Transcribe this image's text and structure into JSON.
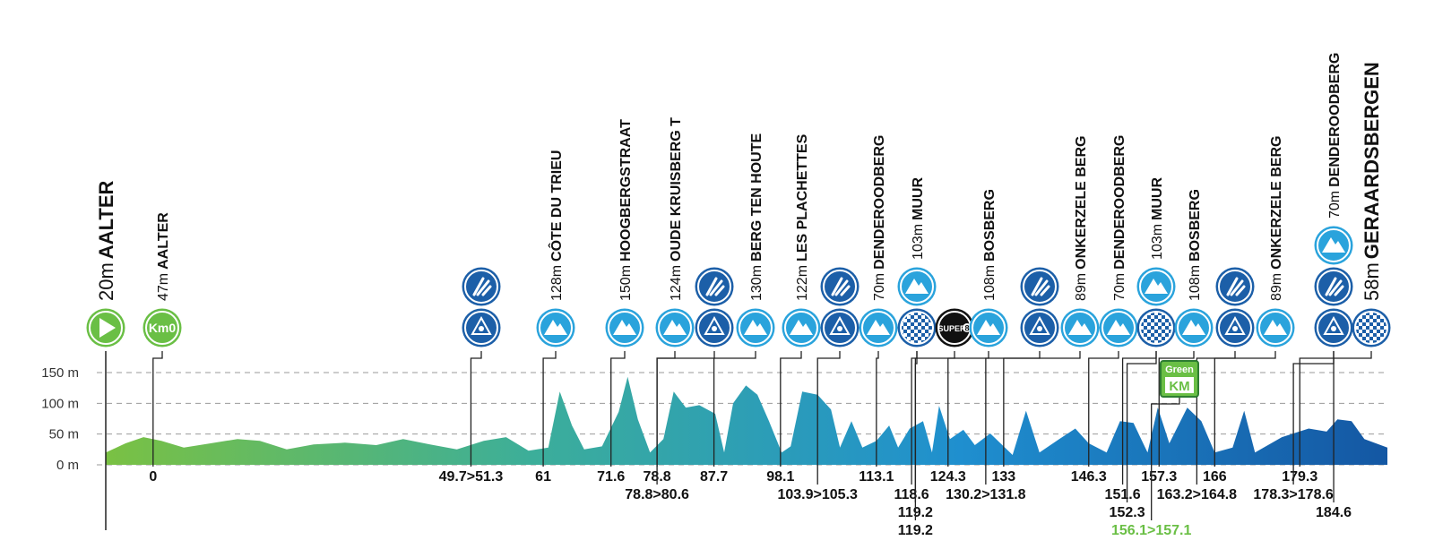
{
  "chart_data": {
    "type": "area",
    "x": [
      -7.4,
      -4.3,
      -1.5,
      1.3,
      4.8,
      9.0,
      13.2,
      16.7,
      20.9,
      25.1,
      30.0,
      34.9,
      39.1,
      43.3,
      47.5,
      51.7,
      55.2,
      58.7,
      61.8,
      63.6,
      65.5,
      67.4,
      70.2,
      72.8,
      74.2,
      75.8,
      77.7,
      79.8,
      81.4,
      83.3,
      85.4,
      87.9,
      89.3,
      90.7,
      92.7,
      94.5,
      96.3,
      98.3,
      99.7,
      101.5,
      103.9,
      106.0,
      107.4,
      109.2,
      110.9,
      113.1,
      115.1,
      116.5,
      118.3,
      120.4,
      121.8,
      122.9,
      124.6,
      126.7,
      128.5,
      130.9,
      134.4,
      136.5,
      138.6,
      141.7,
      144.2,
      146.3,
      149.1,
      151.2,
      153.3,
      155.5,
      157.1,
      158.9,
      161.7,
      163.9,
      166.0,
      168.8,
      170.6,
      172.3,
      176.5,
      180.7,
      183.5,
      185.2,
      187.4,
      189.4,
      193.0
    ],
    "values": [
      20,
      35,
      45,
      39,
      28,
      35,
      42,
      39,
      25,
      33,
      36,
      32,
      42,
      33,
      25,
      39,
      45,
      23,
      28,
      119,
      64,
      25,
      30,
      86,
      143,
      74,
      20,
      42,
      119,
      93,
      97,
      83,
      20,
      100,
      129,
      114,
      71,
      20,
      30,
      119,
      114,
      90,
      28,
      71,
      28,
      39,
      64,
      28,
      59,
      71,
      20,
      96,
      42,
      57,
      32,
      51,
      16,
      88,
      20,
      42,
      59,
      35,
      20,
      71,
      68,
      20,
      93,
      35,
      93,
      71,
      20,
      28,
      88,
      20,
      45,
      59,
      54,
      74,
      71,
      42,
      28
    ],
    "color_stops": [
      "#7ac143",
      "#3cae9a",
      "#1f8fcf",
      "#1457a3"
    ],
    "xlim": [
      -7.4,
      193.0
    ],
    "ylim": [
      0,
      150
    ],
    "yticks": [
      {
        "value": 0,
        "label": "0 m"
      },
      {
        "value": 50,
        "label": "50 m"
      },
      {
        "value": 100,
        "label": "100 m"
      },
      {
        "value": 150,
        "label": "150 m"
      }
    ],
    "grid": true,
    "waypoints": [
      {
        "elevation": "20m",
        "name": "AALTER",
        "icons": [
          {
            "type": "start"
          }
        ],
        "km": []
      },
      {
        "elevation": "47m",
        "name": "AALTER",
        "icons": [
          {
            "type": "km0",
            "text_lines": [
              "Km0"
            ]
          }
        ],
        "km": [
          0
        ]
      },
      {
        "icons": [
          {
            "type": "waste"
          },
          {
            "type": "feed"
          }
        ],
        "km": [
          {
            "value": 49.7,
            "label": "49.7>51.3"
          }
        ]
      },
      {
        "elevation": "128m",
        "name": "CÔTE DU TRIEU",
        "icons": [
          {
            "type": "climb"
          }
        ],
        "km": [
          61
        ]
      },
      {
        "elevation": "150m",
        "name": "HOOGBERGSTRAAT",
        "icons": [
          {
            "type": "climb"
          }
        ],
        "km": [
          71.6
        ]
      },
      {
        "elevation": "124m",
        "name": "OUDE KRUISBERG T",
        "icons": [
          {
            "type": "climb"
          }
        ],
        "km": [
          78.8
        ]
      },
      {
        "icons": [
          {
            "type": "waste"
          },
          {
            "type": "feed"
          }
        ],
        "km": [
          {
            "value": 78.8,
            "label": "78.8>80.6"
          }
        ]
      },
      {
        "elevation": "130m",
        "name": "BERG TEN HOUTE",
        "icons": [
          {
            "type": "climb"
          }
        ],
        "km": [
          87.7
        ]
      },
      {
        "elevation": "122m",
        "name": "LES PLACHETTES",
        "icons": [
          {
            "type": "climb"
          }
        ],
        "km": [
          98.1
        ]
      },
      {
        "icons": [
          {
            "type": "waste"
          },
          {
            "type": "feed"
          }
        ],
        "km": [
          {
            "value": 103.9,
            "label": "103.9>105.3"
          }
        ]
      },
      {
        "elevation": "70m",
        "name": "DENDEROODBERG",
        "icons": [
          {
            "type": "climb"
          }
        ],
        "km": [
          113.1
        ]
      },
      {
        "elevation": "103m",
        "name": "MUUR",
        "icons": [
          {
            "type": "sector"
          },
          {
            "type": "climb"
          }
        ],
        "km": [
          118.6,
          119.2
        ]
      },
      {
        "icons": [
          {
            "type": "super8",
            "text_lines": [
              "SUPER",
              "8"
            ]
          }
        ],
        "km": [
          119.2
        ]
      },
      {
        "elevation": "108m",
        "name": "BOSBERG",
        "icons": [
          {
            "type": "climb"
          }
        ],
        "km": [
          124.3
        ]
      },
      {
        "icons": [
          {
            "type": "waste"
          },
          {
            "type": "feed"
          }
        ],
        "km": [
          {
            "value": 130.2,
            "label": "130.2>131.8"
          }
        ]
      },
      {
        "elevation": "89m",
        "name": "ONKERZELE BERG",
        "icons": [
          {
            "type": "climb"
          }
        ],
        "km": [
          133
        ]
      },
      {
        "elevation": "70m",
        "name": "DENDEROODBERG",
        "icons": [
          {
            "type": "climb"
          }
        ],
        "km": [
          146.3
        ]
      },
      {
        "elevation": "103m",
        "name": "MUUR",
        "icons": [
          {
            "type": "sector"
          },
          {
            "type": "climb"
          }
        ],
        "km": [
          151.6,
          152.3
        ]
      },
      {
        "elevation": "108m",
        "name": "BOSBERG",
        "icons": [
          {
            "type": "climb"
          }
        ],
        "km": [
          157.3
        ]
      },
      {
        "icons": [
          {
            "type": "greenkm",
            "text_lines": [
              "Green",
              "KM"
            ]
          }
        ],
        "km": [
          {
            "value": 156.1,
            "label": "156.1>157.1"
          }
        ],
        "km_color": "#6abf45"
      },
      {
        "icons": [
          {
            "type": "waste"
          },
          {
            "type": "feed"
          }
        ],
        "km": [
          {
            "value": 163.2,
            "label": "163.2>164.8"
          }
        ]
      },
      {
        "elevation": "89m",
        "name": "ONKERZELE BERG",
        "icons": [
          {
            "type": "climb"
          }
        ],
        "km": [
          166
        ]
      },
      {
        "elevation": "70m",
        "name": "DENDEROODBERG",
        "icons": [
          {
            "type": "waste"
          },
          {
            "type": "feed"
          },
          {
            "type": "climb"
          }
        ],
        "km": [
          179.3,
          {
            "value": 178.3,
            "label": "178.3>178.6"
          }
        ]
      },
      {
        "elevation": "58m",
        "name": "GERAARDSBERGEN",
        "icons": [
          {
            "type": "finish"
          }
        ],
        "km": [
          184.6
        ]
      }
    ]
  }
}
